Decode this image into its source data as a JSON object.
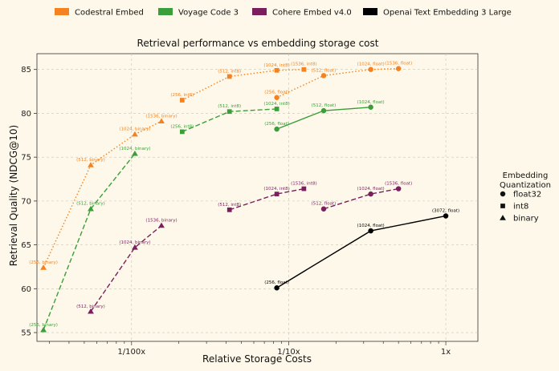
{
  "chart_data": {
    "type": "line",
    "title": "Retrieval performance vs embedding storage cost",
    "xlabel": "Relative Storage Costs",
    "ylabel": "Retrieval Quality (NDCG@10)",
    "xscale": "log",
    "xlim": [
      0.0025,
      1.6
    ],
    "ylim": [
      54.0,
      86.8
    ],
    "xticks": [
      {
        "value": 0.01,
        "label": "1/100x"
      },
      {
        "value": 0.1,
        "label": "1/10x"
      },
      {
        "value": 1,
        "label": "1x"
      }
    ],
    "yticks": [
      55,
      60,
      65,
      70,
      75,
      80,
      85
    ],
    "grid": true,
    "legend_position": "top",
    "marker_legend": {
      "title": "Embedding\nQuantization",
      "position": "right",
      "entries": [
        {
          "label": "float32",
          "marker": "circle"
        },
        {
          "label": "int8",
          "marker": "square"
        },
        {
          "label": "binary",
          "marker": "triangle"
        }
      ]
    },
    "series": [
      {
        "name": "Codestral Embed",
        "color": "#f58220",
        "segments": [
          {
            "quantization": "binary",
            "line_style": "dotted",
            "points": [
              {
                "x": 0.00275,
                "y": 62.4,
                "label": "(256, binary)"
              },
              {
                "x": 0.0055,
                "y": 74.1,
                "label": "(512, binary)"
              },
              {
                "x": 0.0105,
                "y": 77.6,
                "label": "(1024, binary)"
              },
              {
                "x": 0.0155,
                "y": 79.1,
                "label": "(1536, binary)"
              }
            ]
          },
          {
            "quantization": "int8",
            "line_style": "dotted",
            "points": [
              {
                "x": 0.021,
                "y": 81.5,
                "label": "(256, int8)"
              },
              {
                "x": 0.042,
                "y": 84.2,
                "label": "(512, int8)"
              },
              {
                "x": 0.084,
                "y": 84.9,
                "label": "(1024, int8)"
              },
              {
                "x": 0.125,
                "y": 85.0,
                "label": "(1536, int8)"
              }
            ]
          },
          {
            "quantization": "float32",
            "line_style": "dotted",
            "points": [
              {
                "x": 0.084,
                "y": 81.8,
                "label": "(256, float)"
              },
              {
                "x": 0.167,
                "y": 84.3,
                "label": "(512, float)"
              },
              {
                "x": 0.333,
                "y": 85.0,
                "label": "(1024, float)"
              },
              {
                "x": 0.5,
                "y": 85.1,
                "label": "(1536, float)"
              }
            ]
          }
        ]
      },
      {
        "name": "Voyage Code 3",
        "color": "#3a9e3a",
        "segments": [
          {
            "quantization": "binary",
            "line_style": "dashed",
            "points": [
              {
                "x": 0.00275,
                "y": 55.3,
                "label": "(256, binary)"
              },
              {
                "x": 0.0055,
                "y": 69.1,
                "label": "(512, binary)"
              },
              {
                "x": 0.0105,
                "y": 75.4,
                "label": "(1024, binary)"
              }
            ]
          },
          {
            "quantization": "int8",
            "line_style": "dashed",
            "points": [
              {
                "x": 0.021,
                "y": 77.9,
                "label": "(256, int8)"
              },
              {
                "x": 0.042,
                "y": 80.2,
                "label": "(512, int8)"
              },
              {
                "x": 0.084,
                "y": 80.5,
                "label": "(1024, int8)"
              }
            ]
          },
          {
            "quantization": "float32",
            "line_style": "solid",
            "points": [
              {
                "x": 0.084,
                "y": 78.2,
                "label": "(256, float)"
              },
              {
                "x": 0.167,
                "y": 80.3,
                "label": "(512, float)"
              },
              {
                "x": 0.333,
                "y": 80.7,
                "label": "(1024, float)"
              }
            ]
          }
        ]
      },
      {
        "name": "Cohere Embed v4.0",
        "color": "#7a1e5e",
        "segments": [
          {
            "quantization": "binary",
            "line_style": "dashed",
            "points": [
              {
                "x": 0.0055,
                "y": 57.4,
                "label": "(512, binary)"
              },
              {
                "x": 0.0105,
                "y": 64.7,
                "label": "(1024, binary)"
              },
              {
                "x": 0.0155,
                "y": 67.2,
                "label": "(1536, binary)"
              }
            ]
          },
          {
            "quantization": "int8",
            "line_style": "dashed",
            "points": [
              {
                "x": 0.042,
                "y": 69.0,
                "label": "(512, int8)"
              },
              {
                "x": 0.084,
                "y": 70.8,
                "label": "(1024, int8)"
              },
              {
                "x": 0.125,
                "y": 71.4,
                "label": "(1536, int8)"
              }
            ]
          },
          {
            "quantization": "float32",
            "line_style": "dashed",
            "points": [
              {
                "x": 0.167,
                "y": 69.1,
                "label": "(512, float)"
              },
              {
                "x": 0.333,
                "y": 70.8,
                "label": "(1024, float)"
              },
              {
                "x": 0.5,
                "y": 71.4,
                "label": "(1536, float)"
              }
            ]
          }
        ]
      },
      {
        "name": "Openai Text Embedding 3 Large",
        "color": "#000000",
        "segments": [
          {
            "quantization": "float32",
            "line_style": "solid",
            "points": [
              {
                "x": 0.084,
                "y": 60.1,
                "label": "(256, float)"
              },
              {
                "x": 0.333,
                "y": 66.6,
                "label": "(1024, float)"
              },
              {
                "x": 1.0,
                "y": 68.3,
                "label": "(3072, float)"
              }
            ]
          }
        ]
      }
    ]
  }
}
